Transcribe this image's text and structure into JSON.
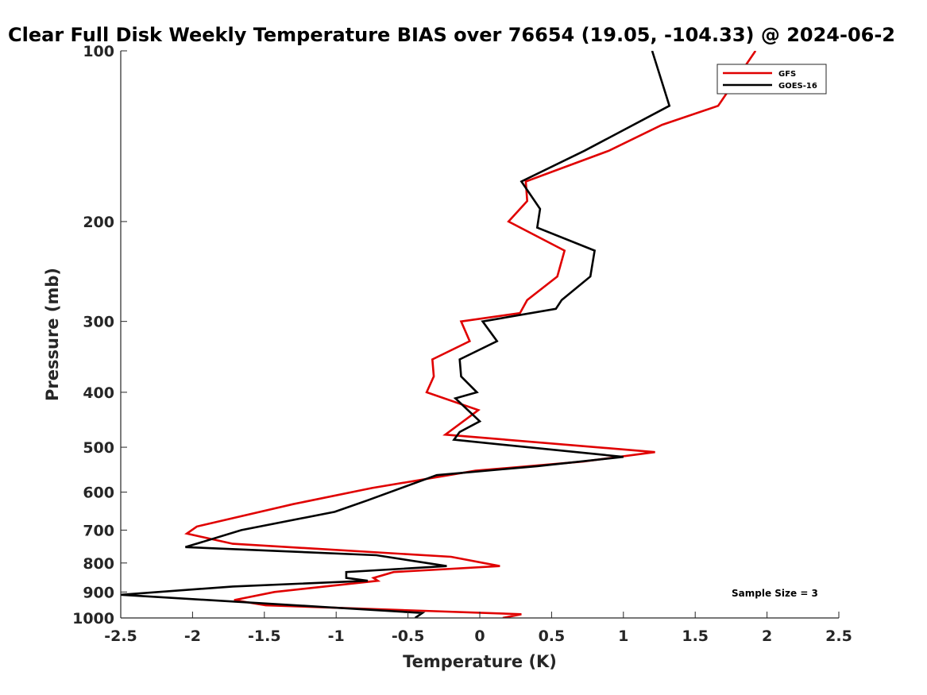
{
  "chart_data": {
    "type": "line",
    "title": "Clear Full Disk Weekly Temperature BIAS over 76654 (19.05, -104.33) @ 2024-06-2",
    "xlabel": "Temperature (K)",
    "ylabel": "Pressure (mb)",
    "xlim": [
      -2.5,
      2.5
    ],
    "ylim": [
      100,
      1000
    ],
    "y_scale": "log",
    "y_reversed": true,
    "grid": false,
    "legend_position": "top-right",
    "x_ticks": [
      "-2.5",
      "-2",
      "-1.5",
      "-1",
      "-0.5",
      "0",
      "0.5",
      "1",
      "1.5",
      "2",
      "2.5"
    ],
    "y_ticks": [
      "100",
      "200",
      "300",
      "400",
      "500",
      "600",
      "700",
      "800",
      "900",
      "1000"
    ],
    "annotation": "Sample Size = 3",
    "series": [
      {
        "name": "GFS",
        "color": "#e00000",
        "points": [
          {
            "p": 100,
            "t": 1.92
          },
          {
            "p": 125,
            "t": 1.66
          },
          {
            "p": 135,
            "t": 1.27
          },
          {
            "p": 150,
            "t": 0.9
          },
          {
            "p": 170,
            "t": 0.32
          },
          {
            "p": 184,
            "t": 0.33
          },
          {
            "p": 200,
            "t": 0.2
          },
          {
            "p": 225,
            "t": 0.59
          },
          {
            "p": 250,
            "t": 0.54
          },
          {
            "p": 275,
            "t": 0.33
          },
          {
            "p": 290,
            "t": 0.28
          },
          {
            "p": 300,
            "t": -0.13
          },
          {
            "p": 325,
            "t": -0.07
          },
          {
            "p": 350,
            "t": -0.33
          },
          {
            "p": 375,
            "t": -0.32
          },
          {
            "p": 400,
            "t": -0.37
          },
          {
            "p": 430,
            "t": -0.01
          },
          {
            "p": 475,
            "t": -0.24
          },
          {
            "p": 510,
            "t": 1.22
          },
          {
            "p": 530,
            "t": 0.72
          },
          {
            "p": 550,
            "t": -0.03
          },
          {
            "p": 590,
            "t": -0.75
          },
          {
            "p": 630,
            "t": -1.3
          },
          {
            "p": 690,
            "t": -1.97
          },
          {
            "p": 710,
            "t": -2.04
          },
          {
            "p": 740,
            "t": -1.72
          },
          {
            "p": 780,
            "t": -0.2
          },
          {
            "p": 810,
            "t": 0.14
          },
          {
            "p": 830,
            "t": -0.6
          },
          {
            "p": 850,
            "t": -0.74
          },
          {
            "p": 860,
            "t": -0.71
          },
          {
            "p": 900,
            "t": -1.43
          },
          {
            "p": 930,
            "t": -1.71
          },
          {
            "p": 950,
            "t": -1.49
          },
          {
            "p": 985,
            "t": 0.29
          },
          {
            "p": 1000,
            "t": 0.16
          }
        ]
      },
      {
        "name": "GOES-16",
        "color": "#000000",
        "points": [
          {
            "p": 100,
            "t": 1.2
          },
          {
            "p": 125,
            "t": 1.32
          },
          {
            "p": 150,
            "t": 0.73
          },
          {
            "p": 170,
            "t": 0.29
          },
          {
            "p": 190,
            "t": 0.42
          },
          {
            "p": 205,
            "t": 0.4
          },
          {
            "p": 225,
            "t": 0.8
          },
          {
            "p": 250,
            "t": 0.77
          },
          {
            "p": 275,
            "t": 0.57
          },
          {
            "p": 285,
            "t": 0.53
          },
          {
            "p": 300,
            "t": 0.02
          },
          {
            "p": 325,
            "t": 0.12
          },
          {
            "p": 350,
            "t": -0.14
          },
          {
            "p": 375,
            "t": -0.13
          },
          {
            "p": 400,
            "t": -0.02
          },
          {
            "p": 410,
            "t": -0.17
          },
          {
            "p": 450,
            "t": 0.0
          },
          {
            "p": 470,
            "t": -0.14
          },
          {
            "p": 485,
            "t": -0.18
          },
          {
            "p": 520,
            "t": 1.0
          },
          {
            "p": 540,
            "t": 0.4
          },
          {
            "p": 560,
            "t": -0.3
          },
          {
            "p": 620,
            "t": -0.78
          },
          {
            "p": 650,
            "t": -1.01
          },
          {
            "p": 700,
            "t": -1.66
          },
          {
            "p": 750,
            "t": -2.05
          },
          {
            "p": 775,
            "t": -0.72
          },
          {
            "p": 810,
            "t": -0.23
          },
          {
            "p": 830,
            "t": -0.93
          },
          {
            "p": 850,
            "t": -0.93
          },
          {
            "p": 860,
            "t": -0.78
          },
          {
            "p": 880,
            "t": -1.72
          },
          {
            "p": 910,
            "t": -2.5
          },
          {
            "p": 980,
            "t": -0.4
          },
          {
            "p": 1000,
            "t": -0.45
          }
        ]
      }
    ]
  }
}
